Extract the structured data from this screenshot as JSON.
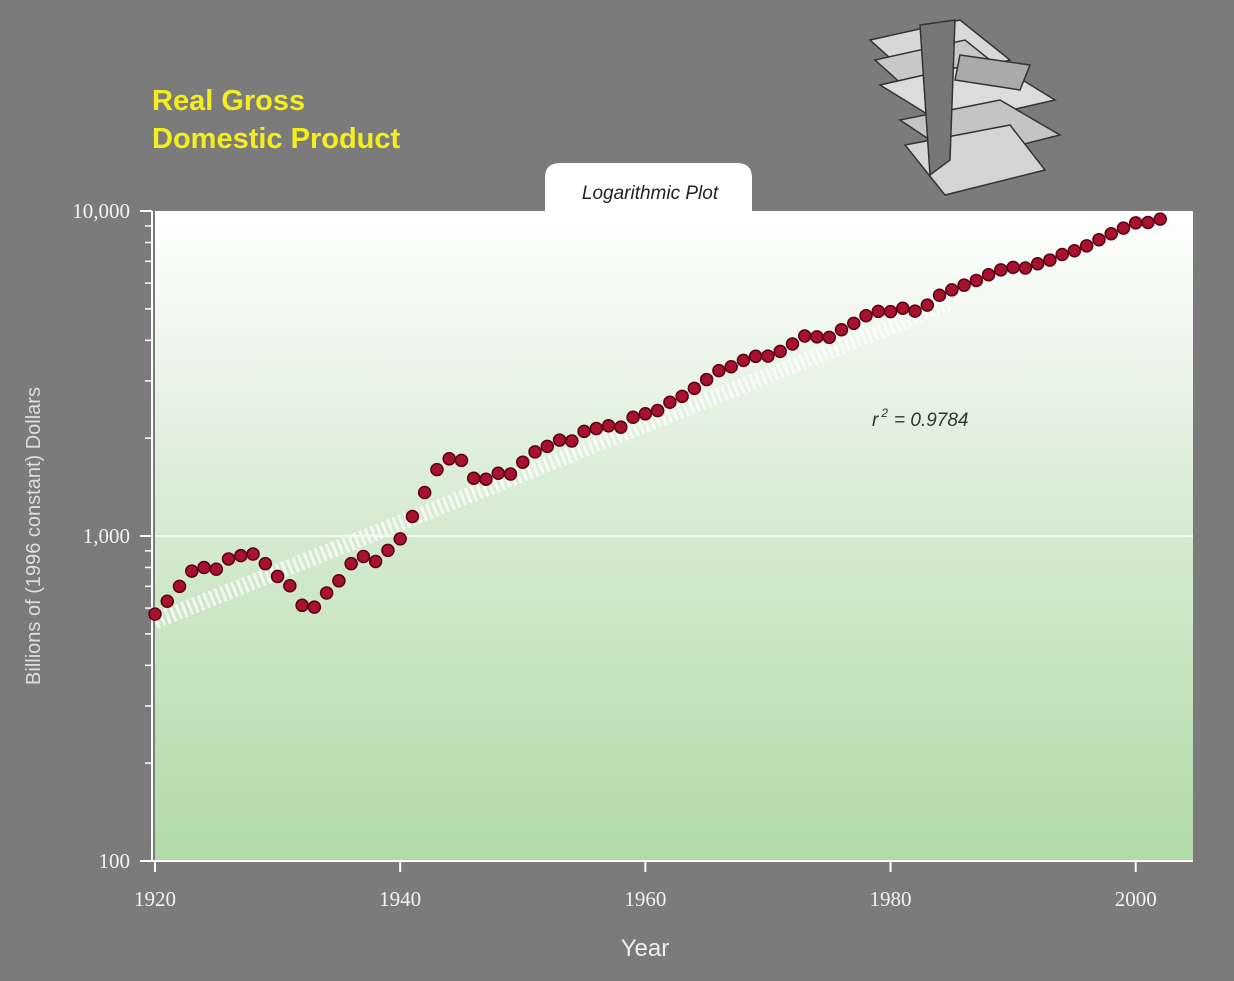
{
  "chart_data": {
    "type": "scatter",
    "title_lines": [
      "Real Gross",
      "Domestic Product"
    ],
    "subtitle": "Logarithmic Plot",
    "y_label": "Billions of (1996 constant) Dollars",
    "x_label": "Year",
    "annotation": {
      "base": "r",
      "sup": "2",
      "rest": "= 0.9784"
    },
    "log_y": true,
    "grid": true,
    "xlim": [
      1920,
      2005
    ],
    "xticks": [
      1920,
      1940,
      1960,
      1980,
      2000
    ],
    "ylim": [
      100,
      10000
    ],
    "yticks": [
      100,
      {
        "value": 1000,
        "label": "1,000"
      },
      {
        "value": 10000,
        "label": "10,000"
      }
    ],
    "yminorticks": [
      200,
      300,
      400,
      500,
      600,
      700,
      800,
      900,
      2000,
      3000,
      4000,
      5000,
      6000,
      7000,
      8000,
      9000
    ],
    "x": [
      1920,
      1921,
      1922,
      1923,
      1924,
      1925,
      1926,
      1927,
      1928,
      1929,
      1930,
      1931,
      1932,
      1933,
      1934,
      1935,
      1936,
      1937,
      1938,
      1939,
      1940,
      1941,
      1942,
      1943,
      1944,
      1945,
      1946,
      1947,
      1948,
      1949,
      1950,
      1951,
      1952,
      1953,
      1954,
      1955,
      1956,
      1957,
      1958,
      1959,
      1960,
      1961,
      1962,
      1963,
      1964,
      1965,
      1966,
      1967,
      1968,
      1969,
      1970,
      1971,
      1972,
      1973,
      1974,
      1975,
      1976,
      1977,
      1978,
      1979,
      1980,
      1981,
      1982,
      1983,
      1984,
      1985,
      1986,
      1987,
      1988,
      1989,
      1990,
      1991,
      1992,
      1993,
      1994,
      1995,
      1996,
      1997,
      1998,
      1999,
      2000,
      2001,
      2002
    ],
    "values": [
      575,
      630,
      700,
      780,
      800,
      790,
      850,
      870,
      880,
      822,
      751,
      703,
      612,
      604,
      668,
      728,
      822,
      865,
      835,
      903,
      980,
      1148,
      1361,
      1600,
      1728,
      1709,
      1506,
      1495,
      1560,
      1551,
      1687,
      1815,
      1887,
      1973,
      1961,
      2099,
      2141,
      2183,
      2162,
      2319,
      2377,
      2432,
      2579,
      2690,
      2847,
      3029,
      3228,
      3317,
      3471,
      3572,
      3578,
      3698,
      3898,
      4124,
      4100,
      4084,
      4312,
      4512,
      4760,
      4912,
      4901,
      5021,
      4920,
      5132,
      5505,
      5718,
      5912,
      6114,
      6368,
      6592,
      6708,
      6676,
      6880,
      7063,
      7348,
      7544,
      7813,
      8160,
      8509,
      8859,
      9191,
      9215,
      9440
    ],
    "color": "#a8122e",
    "trend": {
      "x": [
        1920,
        1985
      ],
      "values": [
        547,
        5250
      ],
      "color": "#ffffff"
    }
  }
}
